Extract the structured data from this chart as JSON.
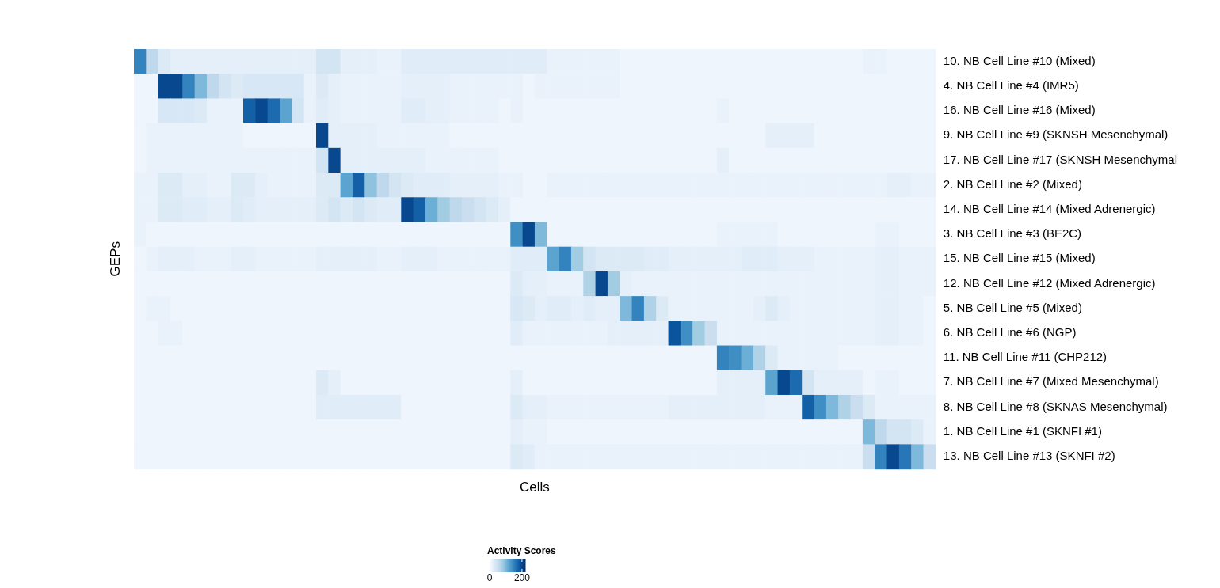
{
  "chart_data": {
    "type": "heatmap",
    "xlabel": "Cells",
    "ylabel": "GEPs",
    "clabel": "Activity Scores",
    "tick_labels": "y",
    "categories": [
      null,
      null,
      null,
      null,
      null,
      null,
      null,
      null,
      null,
      null,
      null,
      null,
      null,
      null,
      null,
      null,
      null,
      null,
      null,
      null,
      null,
      null,
      null,
      null,
      null,
      null,
      null,
      null,
      null,
      null,
      null,
      null,
      null,
      null,
      null,
      null,
      null,
      null,
      null,
      null,
      null,
      null,
      null,
      null,
      null,
      null,
      null,
      null,
      null,
      null,
      null,
      null,
      null,
      null,
      null,
      null,
      null,
      null,
      null,
      null,
      null,
      null,
      null,
      null,
      null,
      null
    ],
    "y_categories": [
      "10. NB Cell Line #10 (Mixed)",
      "4. NB Cell Line #4 (IMR5)",
      "16. NB Cell Line #16 (Mixed)",
      "9. NB Cell Line #9 (SKNSH Mesenchymal)",
      "17. NB Cell Line #17 (SKNSH Mesenchymal",
      "2. NB Cell Line #2 (Mixed)",
      "14. NB Cell Line #14 (Mixed Adrenergic)",
      "3. NB Cell Line #3 (BE2C)",
      "15. NB Cell Line #15 (Mixed)",
      "12. NB Cell Line #12 (Mixed Adrenergic)",
      "5. NB Cell Line #5 (Mixed)",
      "6. NB Cell Line #6 (NGP)",
      "11. NB Cell Line #11 (CHP212)",
      "7. NB Cell Line #7 (Mixed Mesenchymal)",
      "8. NB Cell Line #8 (SKNAS Mesenchymal)",
      "1. NB Cell Line #1 (SKNFI #1)",
      "13. NB Cell Line #13 (SKNFI #2)"
    ],
    "cells": [
      [
        150,
        60,
        30,
        20,
        20,
        20,
        20,
        20,
        20,
        20,
        20,
        20,
        20,
        20,
        20,
        40,
        40,
        20,
        20,
        20,
        15,
        15,
        25,
        25,
        25,
        25,
        25,
        25,
        25,
        25,
        25,
        25,
        25,
        25,
        15,
        15,
        15,
        15,
        15,
        15,
        10,
        10,
        10,
        10,
        10,
        10,
        10,
        10,
        10,
        10,
        10,
        10,
        10,
        10,
        10,
        10,
        10,
        10,
        10,
        10,
        15,
        15,
        10,
        10,
        10,
        10
      ],
      [
        10,
        10,
        200,
        200,
        150,
        100,
        60,
        40,
        30,
        35,
        35,
        35,
        35,
        35,
        15,
        30,
        20,
        15,
        15,
        15,
        15,
        15,
        20,
        20,
        20,
        20,
        15,
        15,
        15,
        15,
        15,
        15,
        10,
        15,
        15,
        15,
        15,
        15,
        15,
        15,
        10,
        10,
        10,
        10,
        10,
        10,
        10,
        10,
        10,
        10,
        10,
        10,
        10,
        10,
        10,
        10,
        10,
        10,
        10,
        10,
        10,
        10,
        10,
        10,
        10,
        10
      ],
      [
        10,
        10,
        35,
        35,
        35,
        30,
        15,
        15,
        15,
        180,
        200,
        170,
        120,
        40,
        15,
        25,
        20,
        15,
        15,
        15,
        15,
        15,
        25,
        25,
        20,
        20,
        15,
        15,
        15,
        15,
        10,
        15,
        10,
        10,
        10,
        10,
        10,
        10,
        10,
        10,
        10,
        10,
        10,
        10,
        10,
        10,
        10,
        10,
        15,
        10,
        10,
        10,
        10,
        10,
        10,
        10,
        10,
        10,
        10,
        10,
        10,
        10,
        10,
        10,
        10,
        10
      ],
      [
        10,
        15,
        15,
        15,
        15,
        15,
        15,
        15,
        15,
        10,
        10,
        10,
        10,
        10,
        10,
        200,
        20,
        20,
        20,
        20,
        15,
        15,
        15,
        15,
        15,
        15,
        10,
        10,
        10,
        10,
        10,
        10,
        10,
        10,
        10,
        10,
        10,
        10,
        10,
        10,
        10,
        10,
        10,
        10,
        10,
        10,
        10,
        10,
        10,
        10,
        10,
        10,
        20,
        20,
        20,
        20,
        10,
        10,
        10,
        10,
        10,
        10,
        10,
        10,
        10,
        10
      ],
      [
        10,
        15,
        15,
        15,
        15,
        15,
        15,
        15,
        15,
        15,
        15,
        15,
        15,
        15,
        15,
        40,
        200,
        20,
        20,
        20,
        20,
        20,
        20,
        20,
        15,
        15,
        15,
        15,
        15,
        15,
        10,
        10,
        10,
        10,
        10,
        10,
        10,
        10,
        10,
        10,
        10,
        10,
        10,
        10,
        10,
        10,
        10,
        10,
        20,
        10,
        10,
        10,
        10,
        10,
        10,
        10,
        10,
        10,
        10,
        10,
        10,
        10,
        10,
        10,
        10,
        10
      ],
      [
        15,
        15,
        30,
        30,
        20,
        20,
        15,
        15,
        30,
        30,
        20,
        15,
        15,
        15,
        15,
        30,
        30,
        120,
        180,
        90,
        60,
        40,
        30,
        25,
        25,
        25,
        20,
        20,
        20,
        20,
        15,
        15,
        10,
        10,
        15,
        15,
        15,
        15,
        15,
        15,
        15,
        15,
        15,
        15,
        15,
        15,
        15,
        15,
        15,
        15,
        15,
        15,
        15,
        15,
        15,
        15,
        15,
        15,
        15,
        15,
        15,
        15,
        20,
        20,
        15,
        15
      ],
      [
        15,
        15,
        30,
        30,
        25,
        25,
        20,
        20,
        30,
        25,
        20,
        20,
        20,
        20,
        20,
        30,
        40,
        30,
        40,
        30,
        25,
        25,
        200,
        180,
        110,
        80,
        60,
        50,
        40,
        30,
        20,
        10,
        10,
        10,
        10,
        10,
        10,
        10,
        10,
        10,
        10,
        10,
        10,
        10,
        10,
        10,
        10,
        10,
        10,
        10,
        10,
        10,
        10,
        10,
        10,
        10,
        10,
        10,
        10,
        10,
        10,
        10,
        10,
        10,
        10,
        10
      ],
      [
        15,
        10,
        10,
        10,
        10,
        10,
        10,
        10,
        10,
        10,
        10,
        10,
        10,
        10,
        10,
        10,
        10,
        10,
        10,
        10,
        10,
        10,
        10,
        10,
        10,
        10,
        10,
        10,
        10,
        10,
        10,
        140,
        200,
        100,
        10,
        10,
        10,
        10,
        10,
        10,
        10,
        10,
        10,
        10,
        10,
        10,
        10,
        10,
        15,
        15,
        15,
        15,
        15,
        10,
        10,
        10,
        10,
        10,
        10,
        10,
        10,
        15,
        15,
        10,
        10,
        10
      ],
      [
        10,
        15,
        20,
        20,
        20,
        15,
        15,
        15,
        20,
        20,
        15,
        15,
        15,
        15,
        15,
        20,
        20,
        20,
        20,
        20,
        15,
        15,
        20,
        20,
        20,
        15,
        15,
        15,
        15,
        15,
        15,
        25,
        25,
        25,
        120,
        150,
        80,
        40,
        30,
        30,
        30,
        30,
        25,
        25,
        20,
        20,
        20,
        20,
        20,
        20,
        25,
        25,
        25,
        20,
        20,
        20,
        15,
        15,
        15,
        15,
        15,
        20,
        20,
        15,
        15,
        15
      ],
      [
        10,
        10,
        10,
        10,
        10,
        10,
        10,
        10,
        10,
        10,
        10,
        10,
        10,
        10,
        10,
        10,
        10,
        10,
        10,
        10,
        10,
        10,
        10,
        10,
        10,
        10,
        10,
        10,
        10,
        10,
        10,
        30,
        20,
        20,
        15,
        15,
        15,
        70,
        200,
        80,
        20,
        15,
        15,
        15,
        15,
        15,
        15,
        15,
        15,
        15,
        15,
        15,
        15,
        15,
        15,
        15,
        15,
        15,
        15,
        15,
        15,
        20,
        20,
        15,
        15,
        15
      ],
      [
        10,
        15,
        15,
        10,
        10,
        10,
        10,
        10,
        10,
        10,
        10,
        10,
        10,
        10,
        10,
        10,
        10,
        10,
        10,
        10,
        10,
        10,
        10,
        10,
        10,
        10,
        10,
        10,
        10,
        10,
        10,
        35,
        30,
        20,
        25,
        25,
        20,
        25,
        20,
        20,
        100,
        150,
        70,
        30,
        15,
        15,
        15,
        15,
        15,
        15,
        15,
        20,
        30,
        20,
        15,
        15,
        15,
        15,
        15,
        15,
        15,
        20,
        20,
        15,
        15,
        10
      ],
      [
        10,
        10,
        15,
        15,
        10,
        10,
        10,
        10,
        10,
        10,
        10,
        10,
        10,
        10,
        10,
        10,
        10,
        10,
        10,
        10,
        10,
        10,
        10,
        10,
        10,
        10,
        10,
        10,
        10,
        10,
        10,
        25,
        15,
        15,
        15,
        15,
        15,
        15,
        15,
        20,
        20,
        20,
        20,
        20,
        190,
        140,
        80,
        50,
        15,
        15,
        15,
        15,
        15,
        15,
        15,
        15,
        15,
        15,
        15,
        15,
        15,
        20,
        20,
        15,
        15,
        10
      ],
      [
        10,
        10,
        10,
        10,
        10,
        10,
        10,
        10,
        10,
        10,
        10,
        10,
        10,
        10,
        10,
        10,
        10,
        10,
        10,
        10,
        10,
        10,
        10,
        10,
        10,
        10,
        10,
        10,
        10,
        10,
        10,
        10,
        10,
        10,
        10,
        10,
        10,
        10,
        10,
        10,
        10,
        10,
        10,
        10,
        10,
        10,
        10,
        10,
        150,
        140,
        110,
        70,
        30,
        15,
        15,
        15,
        15,
        15,
        10,
        10,
        10,
        10,
        10,
        10,
        10,
        10
      ],
      [
        10,
        10,
        10,
        10,
        10,
        10,
        10,
        10,
        10,
        10,
        10,
        10,
        10,
        10,
        10,
        30,
        20,
        10,
        10,
        10,
        10,
        10,
        10,
        10,
        10,
        10,
        10,
        10,
        10,
        10,
        10,
        20,
        10,
        10,
        10,
        10,
        10,
        10,
        10,
        10,
        10,
        10,
        10,
        10,
        10,
        10,
        10,
        10,
        20,
        20,
        20,
        20,
        120,
        200,
        170,
        40,
        20,
        20,
        20,
        20,
        10,
        15,
        15,
        10,
        10,
        10
      ],
      [
        10,
        10,
        10,
        10,
        10,
        10,
        10,
        10,
        10,
        10,
        10,
        10,
        10,
        10,
        10,
        25,
        25,
        25,
        25,
        25,
        25,
        25,
        10,
        10,
        10,
        10,
        10,
        10,
        10,
        10,
        10,
        30,
        20,
        20,
        15,
        15,
        15,
        15,
        15,
        15,
        15,
        15,
        15,
        15,
        20,
        20,
        20,
        20,
        20,
        20,
        20,
        20,
        15,
        15,
        15,
        180,
        140,
        100,
        70,
        50,
        30,
        15,
        15,
        15,
        15,
        15
      ],
      [
        10,
        10,
        10,
        10,
        10,
        10,
        10,
        10,
        10,
        10,
        10,
        10,
        10,
        10,
        10,
        10,
        10,
        10,
        10,
        10,
        10,
        10,
        10,
        10,
        10,
        10,
        10,
        10,
        10,
        10,
        10,
        20,
        15,
        15,
        10,
        10,
        10,
        10,
        10,
        10,
        10,
        10,
        10,
        10,
        10,
        10,
        10,
        10,
        10,
        10,
        10,
        10,
        10,
        10,
        10,
        10,
        10,
        10,
        10,
        10,
        100,
        60,
        40,
        40,
        30,
        15
      ],
      [
        10,
        10,
        10,
        10,
        10,
        10,
        10,
        10,
        10,
        10,
        10,
        10,
        10,
        10,
        10,
        10,
        10,
        10,
        10,
        10,
        10,
        10,
        10,
        10,
        10,
        10,
        10,
        10,
        10,
        10,
        10,
        30,
        25,
        15,
        15,
        15,
        15,
        15,
        15,
        15,
        15,
        15,
        15,
        15,
        15,
        15,
        15,
        15,
        15,
        15,
        15,
        15,
        15,
        15,
        15,
        15,
        15,
        15,
        15,
        15,
        50,
        150,
        200,
        160,
        100,
        50
      ]
    ],
    "clim": [
      0,
      220
    ],
    "cticks": [
      0,
      200
    ]
  }
}
